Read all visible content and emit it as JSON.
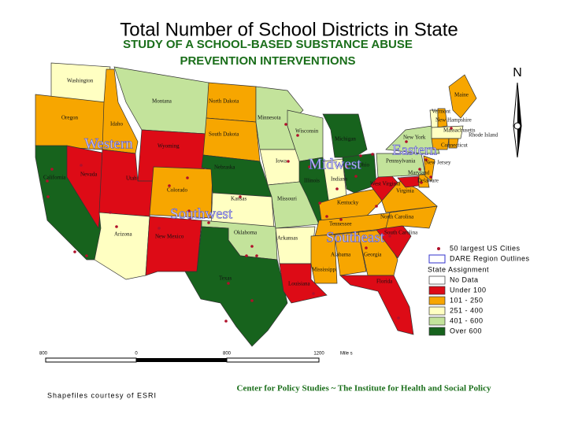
{
  "title": "Total Number of School Districts in State",
  "subtitle": [
    "STUDY OF A SCHOOL-BASED SUBSTANCE ABUSE",
    "PREVENTION INTERVENTIONS"
  ],
  "north": "N",
  "states": [
    {
      "label": "Washington",
      "category": "251 - 400"
    },
    {
      "label": "Oregon",
      "category": "101 - 250"
    },
    {
      "label": "California",
      "category": "Over 600"
    },
    {
      "label": "Nevada",
      "category": "Under 100"
    },
    {
      "label": "Idaho",
      "category": "101 - 250"
    },
    {
      "label": "Montana",
      "category": "401 - 600"
    },
    {
      "label": "Wyoming",
      "category": "Under 100"
    },
    {
      "label": "Utah",
      "category": "Under 100"
    },
    {
      "label": "Arizona",
      "category": "251 - 400"
    },
    {
      "label": "Colorado",
      "category": "101 - 250"
    },
    {
      "label": "New Mexico",
      "category": "Under 100"
    },
    {
      "label": "North Dakota",
      "category": "101 - 250"
    },
    {
      "label": "South Dakota",
      "category": "101 - 250"
    },
    {
      "label": "Nebraska",
      "category": "Over 600"
    },
    {
      "label": "Kansas",
      "category": "251 - 400"
    },
    {
      "label": "Oklahoma",
      "category": "401 - 600"
    },
    {
      "label": "Texas",
      "category": "Over 600"
    },
    {
      "label": "Minnesota",
      "category": "401 - 600"
    },
    {
      "label": "Iowa",
      "category": "251 - 400"
    },
    {
      "label": "Missouri",
      "category": "401 - 600"
    },
    {
      "label": "Arkansas",
      "category": "251 - 400"
    },
    {
      "label": "Louisiana",
      "category": "Under 100"
    },
    {
      "label": "Wisconsin",
      "category": "401 - 600"
    },
    {
      "label": "Illinois",
      "category": "Over 600"
    },
    {
      "label": "Michigan",
      "category": "Over 600"
    },
    {
      "label": "Indiana",
      "category": "251 - 400"
    },
    {
      "label": "Ohio",
      "category": "Over 600"
    },
    {
      "label": "Kentucky",
      "category": "101 - 250"
    },
    {
      "label": "Tennessee",
      "category": "101 - 250"
    },
    {
      "label": "Mississippi",
      "category": "101 - 250"
    },
    {
      "label": "Alabama",
      "category": "101 - 250"
    },
    {
      "label": "Georgia",
      "category": "101 - 250"
    },
    {
      "label": "Florida",
      "category": "Under 100"
    },
    {
      "label": "South Carolina",
      "category": "Under 100"
    },
    {
      "label": "North Carolina",
      "category": "101 - 250"
    },
    {
      "label": "Virginia",
      "category": "101 - 250"
    },
    {
      "label": "West Virginia",
      "category": "Under 100"
    },
    {
      "label": "Pennsylvania",
      "category": "401 - 600"
    },
    {
      "label": "New York",
      "category": "401 - 600"
    },
    {
      "label": "Maryland",
      "category": "Under 100"
    },
    {
      "label": "Delaware",
      "category": "101 - 250"
    },
    {
      "label": "New Jersey",
      "category": "101 - 250"
    },
    {
      "label": "Maine",
      "category": "101 - 250"
    },
    {
      "label": "Vermont",
      "category": "251 - 400"
    },
    {
      "label": "New Hampshire",
      "category": "101 - 250"
    },
    {
      "label": "Massachusetts",
      "category": "251 - 400"
    },
    {
      "label": "Connecticut",
      "category": "101 - 250"
    },
    {
      "label": "Rhode Island",
      "category": "101 - 250"
    }
  ],
  "regions": [
    "Western",
    "Southwest",
    "Midwest",
    "Eastern",
    "Southeast"
  ],
  "legend": {
    "cities": "50 largest US Cities",
    "outlines": "DARE Region Outlines",
    "heading": "State Assignment",
    "categories": [
      {
        "label": "No Data",
        "color": "#ffffff"
      },
      {
        "label": "Under 100",
        "color": "#dd0b16"
      },
      {
        "label": "101 - 250",
        "color": "#f7a600"
      },
      {
        "label": "251 - 400",
        "color": "#ffffc2"
      },
      {
        "label": "401 - 600",
        "color": "#c3e39b"
      },
      {
        "label": "Over 600",
        "color": "#17631d"
      }
    ]
  },
  "scale": [
    "800",
    "0",
    "800",
    "1200",
    "Mile s"
  ],
  "credits": {
    "shapefiles": "Shapefiles courtesy of ESRI",
    "center": "Center for Policy Studies  ~  The Institute for Health and Social Policy"
  }
}
